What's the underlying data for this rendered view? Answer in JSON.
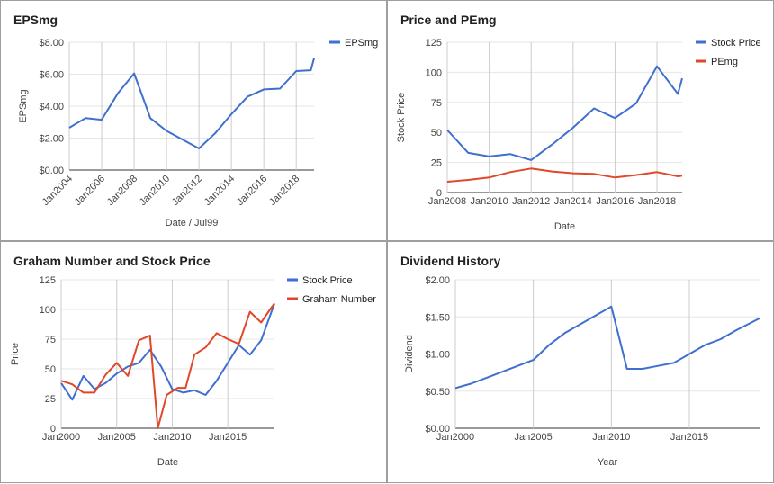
{
  "chart_data": [
    {
      "id": "p1",
      "type": "line",
      "title": "EPSmg",
      "xlabel": "Date / Jul99",
      "ylabel": "EPSmg",
      "ylim": [
        0,
        8
      ],
      "xlim": [
        2004,
        2019.1
      ],
      "y_ticks": [
        0,
        2,
        4,
        6,
        8
      ],
      "y_tick_labels": [
        "$0.00",
        "$2.00",
        "$4.00",
        "$6.00",
        "$8.00"
      ],
      "x_ticks": [
        2004,
        2006,
        2008,
        2010,
        2012,
        2014,
        2016,
        2018
      ],
      "x_tick_labels": [
        "Jan2004",
        "Jan2006",
        "Jan2008",
        "Jan2010",
        "Jan2012",
        "Jan2014",
        "Jan2016",
        "Jan2018"
      ],
      "x_label_style": "rotated",
      "grid": "both",
      "legend_position": "right",
      "series": [
        {
          "name": "EPSmg",
          "color": "#3f6fcf",
          "x": [
            2004,
            2005,
            2006,
            2007,
            2008,
            2009,
            2010,
            2011,
            2012,
            2013,
            2014,
            2015,
            2016,
            2017,
            2018,
            2018.9,
            2019.1
          ],
          "y": [
            2.65,
            3.25,
            3.15,
            4.8,
            6.05,
            3.25,
            2.45,
            1.9,
            1.35,
            2.3,
            3.5,
            4.6,
            5.05,
            5.1,
            6.2,
            6.25,
            7.0
          ]
        }
      ]
    },
    {
      "id": "p2",
      "type": "line",
      "title": "Price and PEmg",
      "xlabel": "Date",
      "ylabel": "Stock Price",
      "ylim": [
        0,
        125
      ],
      "xlim": [
        2008,
        2019.2
      ],
      "y_ticks": [
        0,
        25,
        50,
        75,
        100,
        125
      ],
      "y_tick_labels": [
        "0",
        "25",
        "50",
        "75",
        "100",
        "125"
      ],
      "x_ticks": [
        2008,
        2010,
        2012,
        2014,
        2016,
        2018
      ],
      "x_tick_labels": [
        "Jan2008",
        "Jan2010",
        "Jan2012",
        "Jan2014",
        "Jan2016",
        "Jan2018"
      ],
      "x_label_style": "horizontal",
      "grid": "both",
      "legend_position": "right",
      "series": [
        {
          "name": "Stock Price",
          "color": "#3f6fcf",
          "x": [
            2008,
            2009,
            2010,
            2011,
            2012,
            2013,
            2014,
            2015,
            2016,
            2017,
            2018,
            2019,
            2019.2
          ],
          "y": [
            52,
            33,
            30,
            32,
            27,
            40,
            54,
            70,
            62,
            74,
            105,
            82,
            95
          ]
        },
        {
          "name": "PEmg",
          "color": "#e0482a",
          "x": [
            2008,
            2009,
            2010,
            2011,
            2012,
            2013,
            2014,
            2015,
            2016,
            2017,
            2018,
            2019,
            2019.2
          ],
          "y": [
            9,
            10.5,
            12.5,
            17,
            20,
            17.5,
            16,
            15.5,
            12.5,
            14.5,
            17,
            13.5,
            14
          ]
        }
      ]
    },
    {
      "id": "p3",
      "type": "line",
      "title": "Graham Number and Stock Price",
      "xlabel": "Date",
      "ylabel": "Price",
      "ylim": [
        0,
        125
      ],
      "xlim": [
        2000,
        2019.2
      ],
      "y_ticks": [
        0,
        25,
        50,
        75,
        100,
        125
      ],
      "y_tick_labels": [
        "0",
        "25",
        "50",
        "75",
        "100",
        "125"
      ],
      "x_ticks": [
        2000,
        2005,
        2010,
        2015
      ],
      "x_tick_labels": [
        "Jan2000",
        "Jan2005",
        "Jan2010",
        "Jan2015"
      ],
      "x_label_style": "horizontal",
      "grid": "both",
      "legend_position": "right",
      "series": [
        {
          "name": "Stock Price",
          "color": "#3f6fcf",
          "x": [
            2000,
            2001,
            2002,
            2003,
            2004,
            2005,
            2006,
            2007,
            2008,
            2009,
            2010,
            2011,
            2012,
            2013,
            2014,
            2015,
            2016,
            2017,
            2018,
            2019.2
          ],
          "y": [
            38,
            24,
            44,
            33,
            38,
            46,
            52,
            55,
            66,
            52,
            33,
            30,
            32,
            28,
            40,
            55,
            70,
            62,
            74,
            105
          ]
        },
        {
          "name": "Graham Number",
          "color": "#e0482a",
          "x": [
            2000,
            2001,
            2002,
            2003,
            2004,
            2005,
            2006,
            2007,
            2008,
            2008.7,
            2009.5,
            2010.5,
            2011.2,
            2012,
            2013,
            2014,
            2015,
            2016,
            2017,
            2018,
            2018.8,
            2019.2
          ],
          "y": [
            40,
            37,
            30,
            30,
            45,
            55,
            44,
            74,
            78,
            0,
            28,
            34,
            34,
            62,
            68,
            80,
            75,
            71,
            98,
            89,
            100,
            105
          ]
        }
      ]
    },
    {
      "id": "p4",
      "type": "line",
      "title": "Dividend History",
      "xlabel": "Year",
      "ylabel": "Dividend",
      "ylim": [
        0,
        2
      ],
      "xlim": [
        2000,
        2019.5
      ],
      "y_ticks": [
        0,
        0.5,
        1,
        1.5,
        2
      ],
      "y_tick_labels": [
        "$0.00",
        "$0.50",
        "$1.00",
        "$1.50",
        "$2.00"
      ],
      "x_ticks": [
        2000,
        2005,
        2010,
        2015
      ],
      "x_tick_labels": [
        "Jan2000",
        "Jan2005",
        "Jan2010",
        "Jan2015"
      ],
      "x_label_style": "horizontal",
      "grid": "both",
      "legend_position": "none",
      "series": [
        {
          "name": "",
          "color": "#3f6fcf",
          "x": [
            2000,
            2001,
            2002,
            2003,
            2004,
            2005,
            2006,
            2007,
            2008,
            2009,
            2010,
            2011,
            2012,
            2013,
            2014,
            2015,
            2016,
            2017,
            2018,
            2019.5
          ],
          "y": [
            0.54,
            0.6,
            0.68,
            0.76,
            0.84,
            0.92,
            1.12,
            1.28,
            1.4,
            1.52,
            1.64,
            0.8,
            0.8,
            0.84,
            0.88,
            1.0,
            1.12,
            1.2,
            1.32,
            1.48
          ]
        }
      ]
    }
  ]
}
